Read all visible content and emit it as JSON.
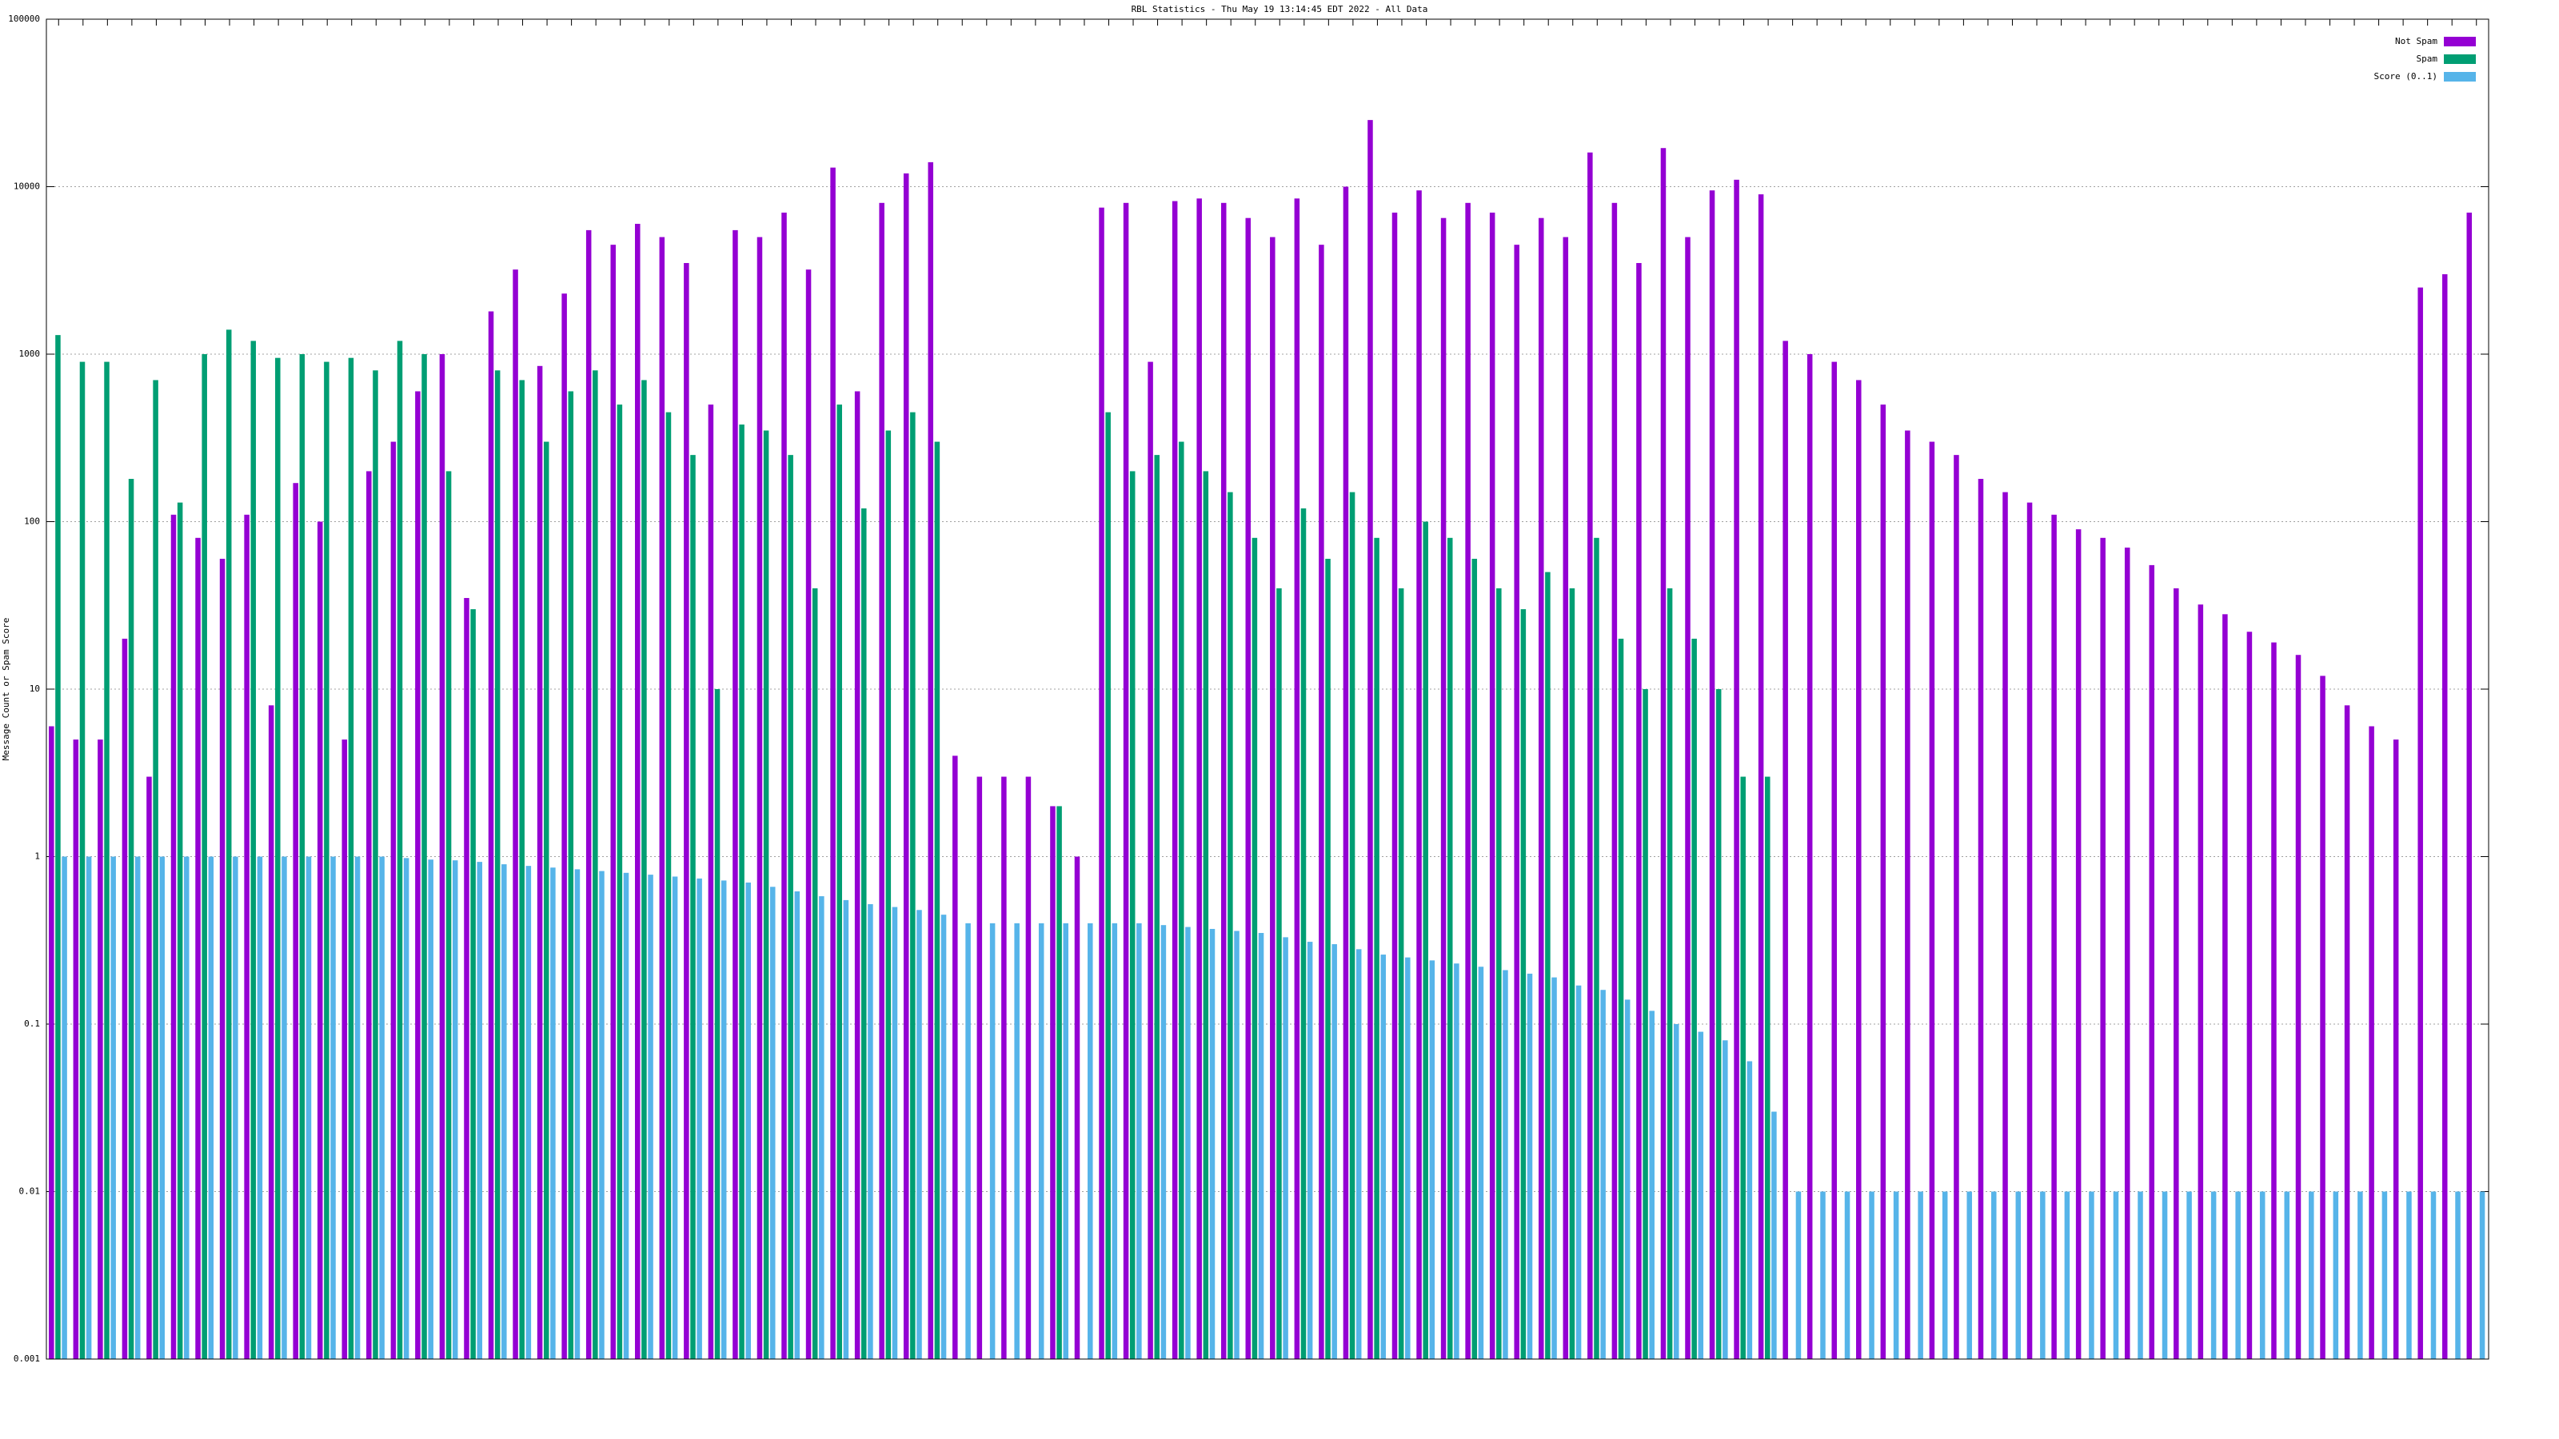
{
  "chart_data": {
    "type": "bar",
    "title": "RBL Statistics - Thu May 19 13:14:45 EDT 2022 - All Data",
    "y_label": "Message Count or Spam Score",
    "log_y": true,
    "grid": true,
    "legend": "upper right",
    "ylim": [
      0.001,
      100000
    ],
    "yticks": [
      0.001,
      0.01,
      0.1,
      1,
      10,
      100,
      1000,
      10000,
      100000
    ],
    "categories": [
      null,
      null,
      null,
      null,
      null,
      null,
      null,
      null,
      null,
      null,
      null,
      null,
      null,
      null,
      null,
      null,
      null,
      null,
      null,
      null,
      null,
      null,
      null,
      null,
      null,
      null,
      null,
      null,
      null,
      null,
      null,
      null,
      null,
      null,
      null,
      null,
      null,
      null,
      null,
      null,
      null,
      null,
      null,
      null,
      null,
      null,
      null,
      null,
      null,
      null,
      null,
      null,
      null,
      null,
      null,
      null,
      null,
      null,
      null,
      null,
      null,
      null,
      null,
      null,
      null,
      null,
      null,
      null,
      null,
      null,
      null,
      null,
      null,
      null,
      null,
      null,
      null,
      null,
      null,
      null,
      null,
      null,
      null,
      null,
      null,
      null,
      null,
      null,
      null,
      null,
      null,
      null,
      null,
      null,
      null,
      null,
      null,
      null,
      null,
      null
    ],
    "series": [
      {
        "name": "Not Spam",
        "color": "#9400d3",
        "values": [
          6,
          5,
          5,
          20,
          3,
          110,
          80,
          60,
          110,
          8,
          170,
          100,
          5,
          200,
          300,
          600,
          1000,
          35,
          1800,
          3200,
          850,
          2300,
          5500,
          4500,
          6000,
          5000,
          3500,
          500,
          5500,
          5000,
          7000,
          3200,
          13000,
          600,
          8000,
          12000,
          14000,
          4,
          3,
          3,
          3,
          2,
          1,
          7500,
          8000,
          900,
          8200,
          8500,
          8000,
          6500,
          5000,
          8500,
          4500,
          10000,
          25000,
          7000,
          9500,
          6500,
          8000,
          7000,
          4500,
          6500,
          5000,
          16000,
          8000,
          3500,
          17000,
          5000,
          9500,
          11000,
          9000,
          1200,
          1000,
          900,
          700,
          500,
          350,
          300,
          250,
          180,
          150,
          130,
          110,
          90,
          80,
          70,
          55,
          40,
          32,
          28,
          22,
          19,
          16,
          12,
          8,
          6,
          5,
          2500,
          3000,
          7000
        ]
      },
      {
        "name": "Spam",
        "color": "#009e73",
        "values": [
          1300,
          900,
          900,
          180,
          700,
          130,
          1000,
          1400,
          1200,
          950,
          1000,
          900,
          950,
          800,
          1200,
          1000,
          200,
          30,
          800,
          700,
          300,
          600,
          800,
          500,
          700,
          450,
          250,
          10,
          380,
          350,
          250,
          40,
          500,
          120,
          350,
          450,
          300,
          null,
          null,
          null,
          null,
          2,
          null,
          450,
          200,
          250,
          300,
          200,
          150,
          80,
          40,
          120,
          60,
          150,
          80,
          40,
          100,
          80,
          60,
          40,
          30,
          50,
          40,
          80,
          20,
          10,
          40,
          20,
          10,
          3,
          3,
          null,
          null,
          null,
          null,
          null,
          null,
          null,
          null,
          null,
          null,
          null,
          null,
          null,
          null,
          null,
          null,
          null,
          null,
          null,
          null,
          null,
          null,
          null,
          null,
          null,
          null,
          null,
          null,
          null
        ]
      },
      {
        "name": "Score (0..1)",
        "color": "#56b4e9",
        "values": [
          1,
          1,
          1,
          1,
          1,
          1,
          1,
          1,
          1,
          1,
          1,
          1,
          1,
          1,
          0.98,
          0.96,
          0.95,
          0.93,
          0.9,
          0.88,
          0.86,
          0.84,
          0.82,
          0.8,
          0.78,
          0.76,
          0.74,
          0.72,
          0.7,
          0.66,
          0.62,
          0.58,
          0.55,
          0.52,
          0.5,
          0.48,
          0.45,
          0.4,
          0.4,
          0.4,
          0.4,
          0.4,
          0.4,
          0.4,
          0.4,
          0.39,
          0.38,
          0.37,
          0.36,
          0.35,
          0.33,
          0.31,
          0.3,
          0.28,
          0.26,
          0.25,
          0.24,
          0.23,
          0.22,
          0.21,
          0.2,
          0.19,
          0.17,
          0.16,
          0.14,
          0.12,
          0.1,
          0.09,
          0.08,
          0.06,
          0.03,
          0.01,
          0.01,
          0.01,
          0.01,
          0.01,
          0.01,
          0.01,
          0.01,
          0.01,
          0.01,
          0.01,
          0.01,
          0.01,
          0.01,
          0.01,
          0.01,
          0.01,
          0.01,
          0.01,
          0.01,
          0.01,
          0.01,
          0.01,
          0.01,
          0.01,
          0.01,
          0.01,
          0.01,
          0.01
        ]
      }
    ]
  }
}
